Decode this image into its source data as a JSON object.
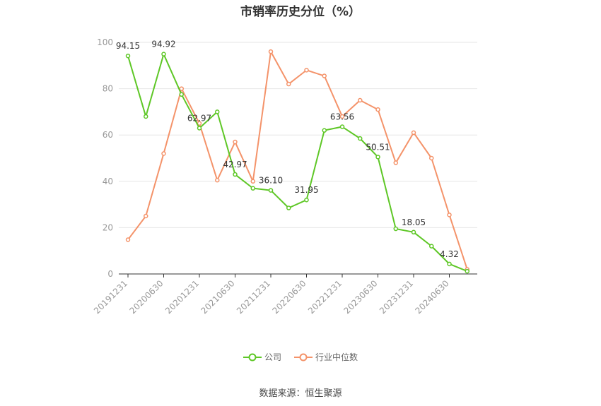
{
  "title": "市销率历史分位（%）",
  "source": "数据来源：恒生聚源",
  "colors": {
    "company": "#5ec726",
    "industry": "#f4936a",
    "grid": "#e6e6e6",
    "axis": "#999999"
  },
  "chart_data": {
    "type": "line",
    "title": "市销率历史分位（%）",
    "categories": [
      "20191231",
      "",
      "20200630",
      "",
      "20201231",
      "",
      "20210630",
      "",
      "20211231",
      "",
      "20220630",
      "",
      "20221231",
      "",
      "20230630",
      "",
      "20231231",
      "",
      "20240630",
      ""
    ],
    "ylim": [
      0,
      100
    ],
    "yticks": [
      0,
      20,
      40,
      60,
      80,
      100
    ],
    "grid": true,
    "legend_position": "bottom",
    "series": [
      {
        "name": "公司",
        "color": "#5ec726",
        "values": [
          94.15,
          68,
          94.92,
          77.5,
          62.97,
          70,
          42.97,
          37,
          36.1,
          28.5,
          31.95,
          62,
          63.56,
          58.5,
          50.51,
          19.5,
          18.05,
          12,
          4.32,
          1.2
        ],
        "labels": [
          "94.15",
          "",
          "94.92",
          "",
          "62.97",
          "",
          "42.97",
          "",
          "36.10",
          "",
          "31.95",
          "",
          "63.56",
          "",
          "50.51",
          "",
          "18.05",
          "",
          "4.32",
          ""
        ]
      },
      {
        "name": "行业中位数",
        "color": "#f4936a",
        "values": [
          14.8,
          25,
          52,
          80,
          65,
          40.5,
          57,
          40,
          96,
          82,
          88,
          85.5,
          68,
          75,
          71,
          48,
          61,
          50,
          25.5,
          2
        ],
        "labels": []
      }
    ]
  }
}
